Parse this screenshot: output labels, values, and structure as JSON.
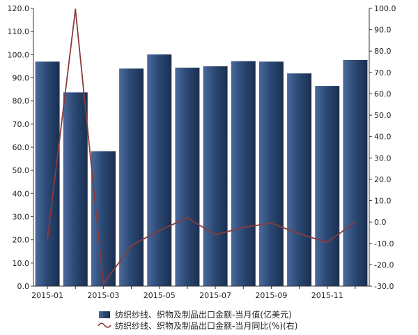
{
  "chart_data": {
    "type": "bar",
    "x": [
      "2015-01",
      "2015-02",
      "2015-03",
      "2015-04",
      "2015-05",
      "2015-06",
      "2015-07",
      "2015-08",
      "2015-09",
      "2015-10",
      "2015-11",
      "2015-12"
    ],
    "x_tick_labels": [
      "2015-01",
      "2015-03",
      "2015-05",
      "2015-07",
      "2015-09",
      "2015-11"
    ],
    "series": [
      {
        "name": "纺织纱线、织物及制品出口金额-当月值(亿美元)",
        "type": "bar",
        "axis": "left",
        "color": "#2c4a75",
        "values": [
          97.0,
          83.7,
          58.3,
          94.0,
          100.1,
          94.4,
          95.0,
          97.2,
          97.0,
          91.9,
          86.5,
          97.7
        ]
      },
      {
        "name": "纺织纱线、织物及制品出口金额-当月同比(%)(右)",
        "type": "line",
        "axis": "right",
        "color": "#8b3a3a",
        "values": [
          -8.0,
          99.5,
          -29.0,
          -11.0,
          -4.0,
          2.0,
          -6.0,
          -2.5,
          -0.5,
          -5.5,
          -9.5,
          0.0
        ]
      }
    ],
    "y_left": {
      "range": [
        0,
        120
      ],
      "ticks": [
        "0.0",
        "10.0",
        "20.0",
        "30.0",
        "40.0",
        "50.0",
        "60.0",
        "70.0",
        "80.0",
        "90.0",
        "100.0",
        "110.0",
        "120.0"
      ]
    },
    "y_right": {
      "range": [
        -30,
        100
      ],
      "ticks": [
        "-30.0",
        "-20.0",
        "-10.0",
        "0.0",
        "10.0",
        "20.0",
        "30.0",
        "40.0",
        "50.0",
        "60.0",
        "70.0",
        "80.0",
        "90.0",
        "100.0"
      ]
    },
    "grid": false,
    "legend_position": "bottom"
  }
}
